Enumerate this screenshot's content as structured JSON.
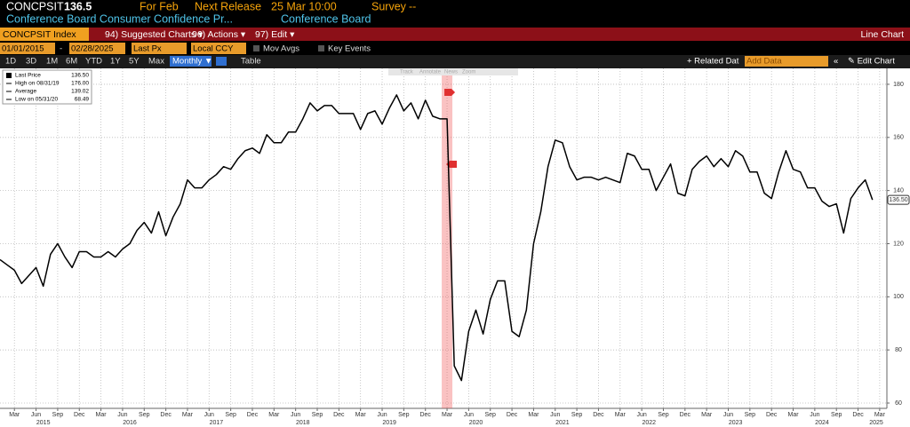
{
  "header": {
    "ticker": "CONCPSIT",
    "price": "136.5",
    "period": "For Feb",
    "release_label": "Next Release",
    "release": "25 Mar 10:00",
    "survey_label": "Survey",
    "survey": "--",
    "name": "Conference Board Consumer Confidence Pr...",
    "source": "Conference Board"
  },
  "toolbar": {
    "security": "CONCPSIT Index",
    "menus": [
      "94) Suggested Charts ▾",
      "96) Actions ▾",
      "97) Edit ▾"
    ],
    "chart_type": "Line Chart"
  },
  "controls": {
    "start": "01/01/2015",
    "separator": "-",
    "end": "02/28/2025",
    "field": "Last Px",
    "currency": "Local CCY",
    "mov_avgs": "Mov Avgs",
    "key_events": "Key Events"
  },
  "ranges": [
    "1D",
    "3D",
    "1M",
    "6M",
    "YTD",
    "1Y",
    "5Y",
    "Max"
  ],
  "frequency": "Monthly ▼",
  "table": "Table",
  "related": "+ Related Dat",
  "add_data": "Add Data",
  "collapse": "«",
  "edit_chart": "✎ Edit Chart",
  "chart_tools": [
    "Track",
    "Annotate",
    "News",
    "Zoom"
  ],
  "chart_data": {
    "type": "line",
    "x": [
      "2015-01",
      "2015-02",
      "2015-03",
      "2015-04",
      "2015-05",
      "2015-06",
      "2015-07",
      "2015-08",
      "2015-09",
      "2015-10",
      "2015-11",
      "2015-12",
      "2016-01",
      "2016-02",
      "2016-03",
      "2016-04",
      "2016-05",
      "2016-06",
      "2016-07",
      "2016-08",
      "2016-09",
      "2016-10",
      "2016-11",
      "2016-12",
      "2017-01",
      "2017-02",
      "2017-03",
      "2017-04",
      "2017-05",
      "2017-06",
      "2017-07",
      "2017-08",
      "2017-09",
      "2017-10",
      "2017-11",
      "2017-12",
      "2018-01",
      "2018-02",
      "2018-03",
      "2018-04",
      "2018-05",
      "2018-06",
      "2018-07",
      "2018-08",
      "2018-09",
      "2018-10",
      "2018-11",
      "2018-12",
      "2019-01",
      "2019-02",
      "2019-03",
      "2019-04",
      "2019-05",
      "2019-06",
      "2019-07",
      "2019-08",
      "2019-09",
      "2019-10",
      "2019-11",
      "2019-12",
      "2020-01",
      "2020-02",
      "2020-03",
      "2020-04",
      "2020-05",
      "2020-06",
      "2020-07",
      "2020-08",
      "2020-09",
      "2020-10",
      "2020-11",
      "2020-12",
      "2021-01",
      "2021-02",
      "2021-03",
      "2021-04",
      "2021-05",
      "2021-06",
      "2021-07",
      "2021-08",
      "2021-09",
      "2021-10",
      "2021-11",
      "2021-12",
      "2022-01",
      "2022-02",
      "2022-03",
      "2022-04",
      "2022-05",
      "2022-06",
      "2022-07",
      "2022-08",
      "2022-09",
      "2022-10",
      "2022-11",
      "2022-12",
      "2023-01",
      "2023-02",
      "2023-03",
      "2023-04",
      "2023-05",
      "2023-06",
      "2023-07",
      "2023-08",
      "2023-09",
      "2023-10",
      "2023-11",
      "2023-12",
      "2024-01",
      "2024-02",
      "2024-03",
      "2024-04",
      "2024-05",
      "2024-06",
      "2024-07",
      "2024-08",
      "2024-09",
      "2024-10",
      "2024-11",
      "2024-12",
      "2025-01",
      "2025-02"
    ],
    "series": [
      {
        "name": "Last Price",
        "color": "#000000",
        "values": [
          114,
          112,
          110,
          105,
          108,
          111,
          104,
          116,
          120,
          115,
          111,
          117,
          117,
          115,
          115,
          117,
          115,
          118,
          120,
          125,
          128,
          124,
          132,
          123,
          130,
          135,
          144,
          141,
          141,
          144,
          146,
          149,
          148,
          152,
          155,
          156,
          154,
          161,
          158,
          158,
          162,
          162,
          167,
          173,
          170,
          172,
          172,
          169,
          169,
          169,
          163,
          169,
          170,
          165,
          171,
          176,
          170,
          173,
          167,
          174,
          168,
          167,
          167,
          74,
          68.49,
          87,
          95,
          86,
          99,
          106,
          106,
          87,
          85,
          95,
          120,
          132,
          149,
          159,
          158,
          149,
          144,
          145,
          145,
          144,
          145,
          144,
          143,
          154,
          153,
          148,
          148,
          140,
          145,
          150,
          139,
          138,
          148,
          151,
          153,
          149,
          152,
          149,
          155,
          153,
          147,
          147,
          139,
          137,
          147,
          155,
          148,
          147,
          141,
          141,
          136,
          134,
          135,
          124,
          137,
          141,
          144,
          136.5
        ]
      }
    ],
    "legend_values": [
      "136.50"
    ],
    "stats": [
      {
        "name": "High on 08/31/19",
        "value": "176.00"
      },
      {
        "name": "Average",
        "value": "139.02"
      },
      {
        "name": "Low on 05/31/20",
        "value": "68.49"
      }
    ],
    "last_value_label": "136.50",
    "highlight_x": "2020-03",
    "xlim": [
      "2015-01",
      "2025-04"
    ],
    "xticks": [
      {
        "value": "2015-03",
        "label": "Mar"
      },
      {
        "value": "2015-06",
        "label": "Jun"
      },
      {
        "value": "2015-09",
        "label": "Sep"
      },
      {
        "value": "2015-12",
        "label": "Dec"
      },
      {
        "value": "2016-03",
        "label": "Mar"
      },
      {
        "value": "2016-06",
        "label": "Jun"
      },
      {
        "value": "2016-09",
        "label": "Sep"
      },
      {
        "value": "2016-12",
        "label": "Dec"
      },
      {
        "value": "2017-03",
        "label": "Mar"
      },
      {
        "value": "2017-06",
        "label": "Jun"
      },
      {
        "value": "2017-09",
        "label": "Sep"
      },
      {
        "value": "2017-12",
        "label": "Dec"
      },
      {
        "value": "2018-03",
        "label": "Mar"
      },
      {
        "value": "2018-06",
        "label": "Jun"
      },
      {
        "value": "2018-09",
        "label": "Sep"
      },
      {
        "value": "2018-12",
        "label": "Dec"
      },
      {
        "value": "2019-03",
        "label": "Mar"
      },
      {
        "value": "2019-06",
        "label": "Jun"
      },
      {
        "value": "2019-09",
        "label": "Sep"
      },
      {
        "value": "2019-12",
        "label": "Dec"
      },
      {
        "value": "2020-03",
        "label": "Mar"
      },
      {
        "value": "2020-06",
        "label": "Jun"
      },
      {
        "value": "2020-09",
        "label": "Sep"
      },
      {
        "value": "2020-12",
        "label": "Dec"
      },
      {
        "value": "2021-03",
        "label": "Mar"
      },
      {
        "value": "2021-06",
        "label": "Jun"
      },
      {
        "value": "2021-09",
        "label": "Sep"
      },
      {
        "value": "2021-12",
        "label": "Dec"
      },
      {
        "value": "2022-03",
        "label": "Mar"
      },
      {
        "value": "2022-06",
        "label": "Jun"
      },
      {
        "value": "2022-09",
        "label": "Sep"
      },
      {
        "value": "2022-12",
        "label": "Dec"
      },
      {
        "value": "2023-03",
        "label": "Mar"
      },
      {
        "value": "2023-06",
        "label": "Jun"
      },
      {
        "value": "2023-09",
        "label": "Sep"
      },
      {
        "value": "2023-12",
        "label": "Dec"
      },
      {
        "value": "2024-03",
        "label": "Mar"
      },
      {
        "value": "2024-06",
        "label": "Jun"
      },
      {
        "value": "2024-09",
        "label": "Sep"
      },
      {
        "value": "2024-12",
        "label": "Dec"
      },
      {
        "value": "2025-03",
        "label": "Mar"
      }
    ],
    "x_years": [
      "2015",
      "2016",
      "2017",
      "2018",
      "2019",
      "2020",
      "2021",
      "2022",
      "2023",
      "2024",
      "2025"
    ],
    "ylim": [
      58,
      186
    ],
    "yticks": [
      60,
      80,
      100,
      120,
      140,
      160,
      180
    ],
    "grid": true
  }
}
